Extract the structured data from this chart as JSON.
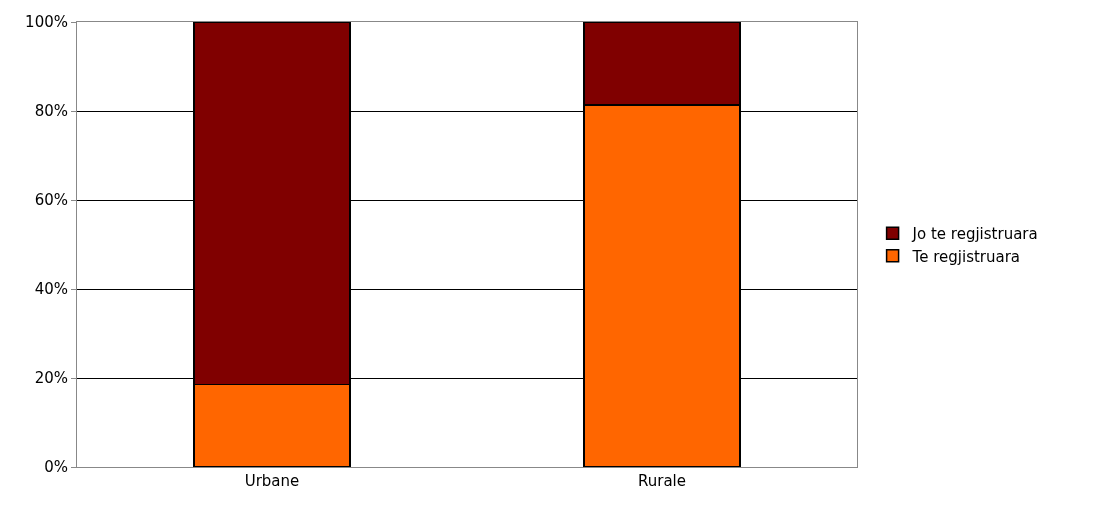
{
  "chart_data": {
    "type": "bar",
    "stacked": true,
    "categories": [
      "Urbane",
      "Rurale"
    ],
    "series": [
      {
        "name": "Te regjistruara",
        "color": "#ff6600",
        "values": [
          18.5,
          81.4
        ]
      },
      {
        "name": "Jo te regjistruara",
        "color": "#800000",
        "values": [
          81.5,
          18.6
        ]
      }
    ],
    "ylim": [
      0,
      100
    ],
    "yticks": [
      {
        "value": 0,
        "label": "0%"
      },
      {
        "value": 20,
        "label": "20%"
      },
      {
        "value": 40,
        "label": "40%"
      },
      {
        "value": 60,
        "label": "60%"
      },
      {
        "value": 80,
        "label": "80%"
      },
      {
        "value": 100,
        "label": "100%"
      }
    ],
    "grid": "y",
    "legend": "right"
  }
}
